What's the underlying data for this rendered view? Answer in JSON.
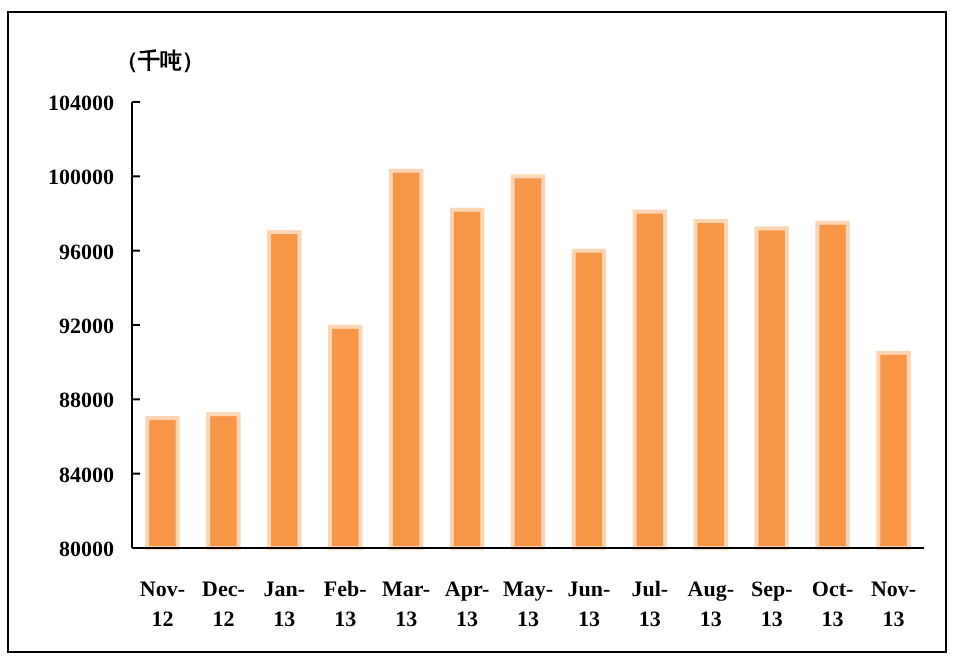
{
  "chart_data": {
    "type": "bar",
    "ylabel": "（千吨）",
    "categories": [
      "Nov-12",
      "Dec-12",
      "Jan-13",
      "Feb-13",
      "Mar-13",
      "Apr-13",
      "May-13",
      "Jun-13",
      "Jul-13",
      "Aug-13",
      "Sep-13",
      "Oct-13",
      "Nov-13"
    ],
    "values": [
      87000,
      87200,
      97000,
      91900,
      100300,
      98200,
      100000,
      96000,
      98100,
      97600,
      97200,
      97500,
      90500
    ],
    "color": "#f79646",
    "ylim": [
      80000,
      104000
    ],
    "yticks": [
      80000,
      84000,
      88000,
      92000,
      96000,
      100000,
      104000
    ],
    "grid": false
  }
}
